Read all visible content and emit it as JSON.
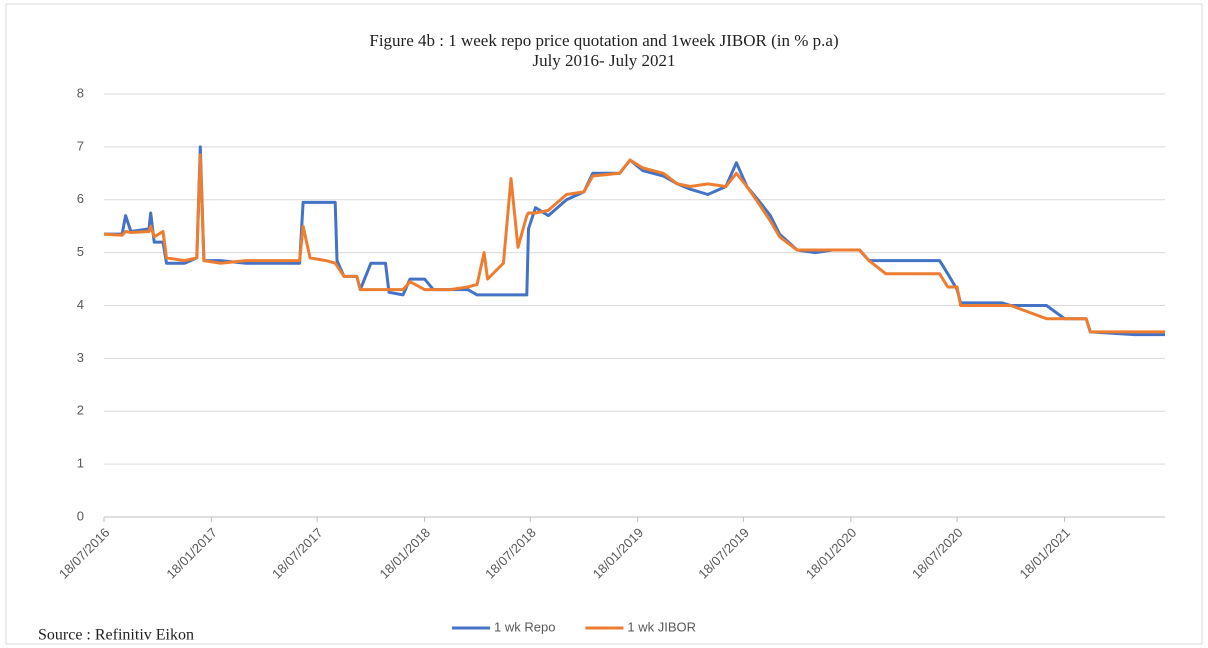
{
  "chart_data": {
    "type": "line",
    "title": "Figure 4b :  1 week repo price quotation and 1week JIBOR (in % p.a)",
    "subtitle": "July 2016- July 2021",
    "source": "Source : Refinitiv Eikon",
    "x": [
      "2016-07-18",
      "2016-08-18",
      "2016-08-24",
      "2016-09-02",
      "2016-10-03",
      "2016-10-06",
      "2016-10-12",
      "2016-10-27",
      "2016-11-02",
      "2016-12-03",
      "2016-12-24",
      "2016-12-30",
      "2017-01-05",
      "2017-02-02",
      "2017-03-18",
      "2017-05-18",
      "2017-06-18",
      "2017-06-24",
      "2017-07-06",
      "2017-08-02",
      "2017-08-18",
      "2017-08-21",
      "2017-09-02",
      "2017-09-24",
      "2017-09-30",
      "2017-10-18",
      "2017-11-12",
      "2017-11-18",
      "2017-12-12",
      "2017-12-24",
      "2018-01-18",
      "2018-02-02",
      "2018-03-03",
      "2018-04-02",
      "2018-04-18",
      "2018-04-30",
      "2018-05-06",
      "2018-06-02",
      "2018-06-15",
      "2018-06-27",
      "2018-07-12",
      "2018-07-15",
      "2018-07-27",
      "2018-08-18",
      "2018-09-18",
      "2018-10-18",
      "2018-11-02",
      "2018-12-18",
      "2019-01-05",
      "2019-01-27",
      "2019-03-03",
      "2019-03-27",
      "2019-04-18",
      "2019-05-18",
      "2019-06-18",
      "2019-07-06",
      "2019-07-24",
      "2019-08-12",
      "2019-09-02",
      "2019-09-18",
      "2019-10-18",
      "2019-11-18",
      "2019-12-18",
      "2020-02-02",
      "2020-02-18",
      "2020-03-18",
      "2020-06-18",
      "2020-07-02",
      "2020-07-18",
      "2020-07-24",
      "2020-10-03",
      "2020-10-18",
      "2020-12-18",
      "2021-01-18",
      "2021-02-24",
      "2021-03-03",
      "2021-05-18",
      "2021-07-09"
    ],
    "series": [
      {
        "name": "1 wk Repo",
        "color": "#4472c4",
        "values": [
          5.35,
          5.35,
          5.7,
          5.4,
          5.45,
          5.75,
          5.2,
          5.2,
          4.8,
          4.8,
          4.9,
          7.0,
          4.85,
          4.85,
          4.8,
          4.8,
          4.8,
          5.95,
          5.95,
          5.95,
          5.95,
          4.85,
          4.55,
          4.55,
          4.3,
          4.8,
          4.8,
          4.25,
          4.2,
          4.5,
          4.5,
          4.3,
          4.3,
          4.3,
          4.2,
          4.2,
          4.2,
          4.2,
          4.2,
          4.2,
          4.2,
          5.45,
          5.85,
          5.7,
          6.0,
          6.15,
          6.5,
          6.5,
          6.75,
          6.55,
          6.45,
          6.3,
          6.2,
          6.1,
          6.25,
          6.7,
          6.25,
          6.0,
          5.7,
          5.35,
          5.05,
          5.0,
          5.05,
          5.05,
          4.85,
          4.85,
          4.85,
          4.6,
          4.3,
          4.05,
          4.05,
          4.0,
          4.0,
          3.75,
          3.75,
          3.5,
          3.45,
          3.45
        ]
      },
      {
        "name": "1 wk JIBOR",
        "color": "#ed7d31",
        "values": [
          5.35,
          5.33,
          5.4,
          5.38,
          5.4,
          5.5,
          5.3,
          5.4,
          4.9,
          4.85,
          4.9,
          6.85,
          4.85,
          4.8,
          4.85,
          4.85,
          4.85,
          5.5,
          4.9,
          4.85,
          4.8,
          4.75,
          4.55,
          4.55,
          4.3,
          4.3,
          4.3,
          4.3,
          4.3,
          4.45,
          4.3,
          4.3,
          4.3,
          4.35,
          4.4,
          5.0,
          4.5,
          4.8,
          6.4,
          5.1,
          5.7,
          5.75,
          5.75,
          5.8,
          6.1,
          6.15,
          6.45,
          6.5,
          6.75,
          6.6,
          6.5,
          6.3,
          6.25,
          6.3,
          6.25,
          6.5,
          6.25,
          5.95,
          5.6,
          5.3,
          5.05,
          5.05,
          5.05,
          5.05,
          4.85,
          4.6,
          4.6,
          4.35,
          4.35,
          4.0,
          4.0,
          4.0,
          3.75,
          3.75,
          3.75,
          3.5,
          3.5,
          3.5
        ]
      }
    ],
    "xlim": [
      "2016-07-18",
      "2021-07-09"
    ],
    "xticks": [
      {
        "value": "2016-07-18",
        "label": "18/07/2016"
      },
      {
        "value": "2017-01-18",
        "label": "18/01/2017"
      },
      {
        "value": "2017-07-18",
        "label": "18/07/2017"
      },
      {
        "value": "2018-01-18",
        "label": "18/01/2018"
      },
      {
        "value": "2018-07-18",
        "label": "18/07/2018"
      },
      {
        "value": "2019-01-18",
        "label": "18/01/2019"
      },
      {
        "value": "2019-07-18",
        "label": "18/07/2019"
      },
      {
        "value": "2020-01-18",
        "label": "18/01/2020"
      },
      {
        "value": "2020-07-18",
        "label": "18/07/2020"
      },
      {
        "value": "2021-01-18",
        "label": "18/01/2021"
      }
    ],
    "ylim": [
      0,
      8
    ],
    "yticks": [
      0,
      1,
      2,
      3,
      4,
      5,
      6,
      7,
      8
    ],
    "grid": true
  }
}
